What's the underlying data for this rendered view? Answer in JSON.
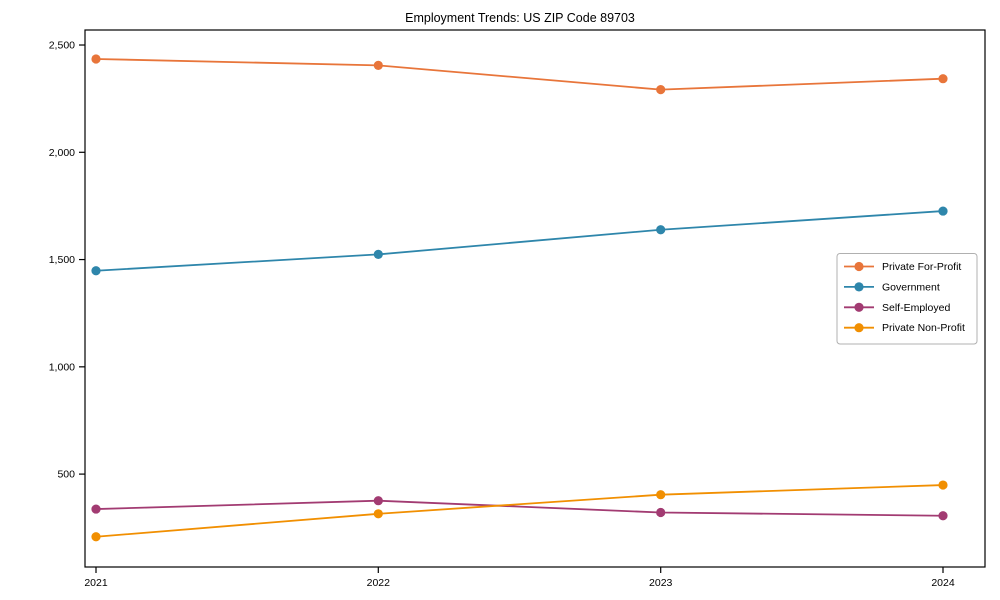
{
  "page": {
    "background": "#ffffff",
    "text_color": "#000000",
    "spine_color": "#000000",
    "legend_border_color": "#b0b0b0"
  },
  "chart_data": {
    "type": "line",
    "title": "Employment Trends: US ZIP Code 89703",
    "xlabel": "",
    "ylabel": "",
    "x": [
      "2021",
      "2022",
      "2023",
      "2024"
    ],
    "series": [
      {
        "name": "Private For-Profit",
        "color": "#E8753A",
        "values": [
          2435,
          2405,
          2292,
          2343
        ]
      },
      {
        "name": "Government",
        "color": "#2E86AB",
        "values": [
          1448,
          1524,
          1639,
          1726
        ]
      },
      {
        "name": "Self-Employed",
        "color": "#A23B72",
        "values": [
          337,
          376,
          321,
          306
        ]
      },
      {
        "name": "Private Non-Profit",
        "color": "#F18F01",
        "values": [
          208,
          315,
          404,
          449
        ]
      }
    ],
    "ylim": [
      67,
      2570
    ],
    "yticks": [
      500,
      1000,
      1500,
      2000,
      2500
    ],
    "ytick_labels": [
      "500",
      "1,000",
      "1,500",
      "2,000",
      "2,500"
    ],
    "grid": false,
    "marker": "circle",
    "legend": {
      "position": "center-right",
      "entries": [
        "Private For-Profit",
        "Government",
        "Self-Employed",
        "Private Non-Profit"
      ]
    }
  }
}
